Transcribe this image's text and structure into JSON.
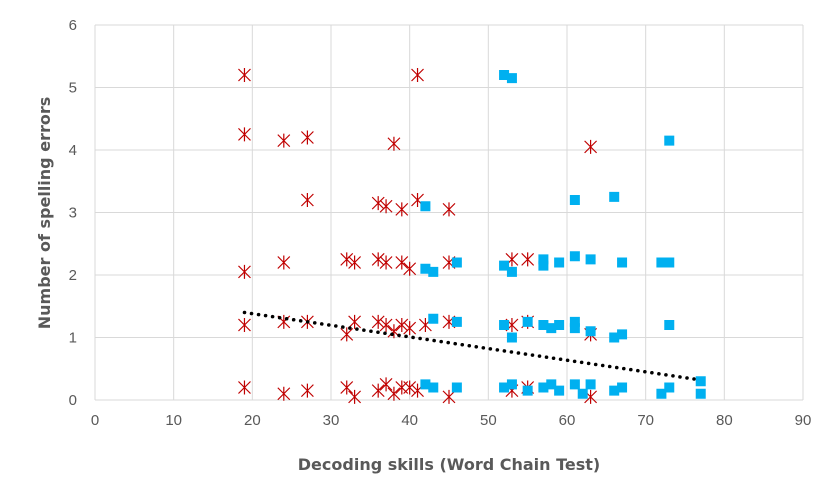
{
  "chart_data": {
    "type": "scatter",
    "title": "",
    "xlabel": "Decoding skills (Word Chain Test)",
    "ylabel": "Number of spelling errors",
    "xlim": [
      0,
      90
    ],
    "ylim": [
      0,
      6
    ],
    "xticks": [
      0,
      10,
      20,
      30,
      40,
      50,
      60,
      70,
      80,
      90
    ],
    "yticks": [
      0,
      1,
      2,
      3,
      4,
      5,
      6
    ],
    "xtick_labels": [
      "0",
      "10",
      "20",
      "30",
      "40",
      "50",
      "60",
      "70",
      "80",
      "90"
    ],
    "ytick_labels": [
      "0",
      "1",
      "2",
      "3",
      "4",
      "5",
      "6"
    ],
    "grid": true,
    "legend": "none",
    "colors": {
      "group_a": "#c00000",
      "group_b": "#00b0f0",
      "trendline": "#000000",
      "grid": "#d9d9d9",
      "axis_text": "#595959"
    },
    "series": [
      {
        "marker": "star",
        "color": "#c00000",
        "points": [
          [
            19,
            5.2
          ],
          [
            41,
            5.2
          ],
          [
            19,
            4.25
          ],
          [
            24,
            4.15
          ],
          [
            27,
            4.2
          ],
          [
            38,
            4.1
          ],
          [
            63,
            4.05
          ],
          [
            27,
            3.2
          ],
          [
            36,
            3.15
          ],
          [
            37,
            3.1
          ],
          [
            39,
            3.05
          ],
          [
            41,
            3.2
          ],
          [
            45,
            3.05
          ],
          [
            19,
            2.05
          ],
          [
            24,
            2.2
          ],
          [
            32,
            2.25
          ],
          [
            33,
            2.2
          ],
          [
            36,
            2.25
          ],
          [
            37,
            2.2
          ],
          [
            39,
            2.2
          ],
          [
            40,
            2.1
          ],
          [
            45,
            2.2
          ],
          [
            53,
            2.25
          ],
          [
            55,
            2.25
          ],
          [
            19,
            1.2
          ],
          [
            24,
            1.25
          ],
          [
            27,
            1.25
          ],
          [
            32,
            1.05
          ],
          [
            33,
            1.25
          ],
          [
            36,
            1.25
          ],
          [
            37,
            1.2
          ],
          [
            38,
            1.1
          ],
          [
            39,
            1.2
          ],
          [
            40,
            1.15
          ],
          [
            42,
            1.2
          ],
          [
            45,
            1.25
          ],
          [
            53,
            1.2
          ],
          [
            55,
            1.25
          ],
          [
            63,
            1.05
          ],
          [
            19,
            0.2
          ],
          [
            24,
            0.1
          ],
          [
            27,
            0.15
          ],
          [
            32,
            0.2
          ],
          [
            33,
            0.05
          ],
          [
            36,
            0.15
          ],
          [
            37,
            0.25
          ],
          [
            38,
            0.1
          ],
          [
            39,
            0.2
          ],
          [
            40,
            0.2
          ],
          [
            41,
            0.15
          ],
          [
            45,
            0.05
          ],
          [
            53,
            0.15
          ],
          [
            55,
            0.2
          ],
          [
            63,
            0.05
          ]
        ]
      },
      {
        "marker": "square",
        "color": "#00b0f0",
        "points": [
          [
            52,
            5.2
          ],
          [
            53,
            5.15
          ],
          [
            73,
            4.15
          ],
          [
            66,
            3.25
          ],
          [
            61,
            3.2
          ],
          [
            42,
            3.1
          ],
          [
            42,
            2.1
          ],
          [
            43,
            2.05
          ],
          [
            46,
            2.2
          ],
          [
            52,
            2.15
          ],
          [
            53,
            2.05
          ],
          [
            57,
            2.25
          ],
          [
            57,
            2.15
          ],
          [
            59,
            2.2
          ],
          [
            61,
            2.3
          ],
          [
            63,
            2.25
          ],
          [
            67,
            2.2
          ],
          [
            72,
            2.2
          ],
          [
            73,
            2.2
          ],
          [
            43,
            1.3
          ],
          [
            46,
            1.25
          ],
          [
            52,
            1.2
          ],
          [
            53,
            1.0
          ],
          [
            55,
            1.25
          ],
          [
            57,
            1.2
          ],
          [
            58,
            1.15
          ],
          [
            59,
            1.2
          ],
          [
            61,
            1.25
          ],
          [
            61,
            1.15
          ],
          [
            63,
            1.1
          ],
          [
            66,
            1.0
          ],
          [
            67,
            1.05
          ],
          [
            73,
            1.2
          ],
          [
            42,
            0.25
          ],
          [
            43,
            0.2
          ],
          [
            46,
            0.2
          ],
          [
            52,
            0.2
          ],
          [
            53,
            0.25
          ],
          [
            55,
            0.15
          ],
          [
            57,
            0.2
          ],
          [
            58,
            0.25
          ],
          [
            59,
            0.15
          ],
          [
            61,
            0.25
          ],
          [
            62,
            0.1
          ],
          [
            63,
            0.25
          ],
          [
            66,
            0.15
          ],
          [
            67,
            0.2
          ],
          [
            72,
            0.1
          ],
          [
            73,
            0.2
          ],
          [
            77,
            0.3
          ],
          [
            77,
            0.1
          ]
        ]
      }
    ],
    "trendline": {
      "style": "dotted",
      "from": [
        19,
        1.4
      ],
      "to": [
        77,
        0.32
      ]
    }
  }
}
